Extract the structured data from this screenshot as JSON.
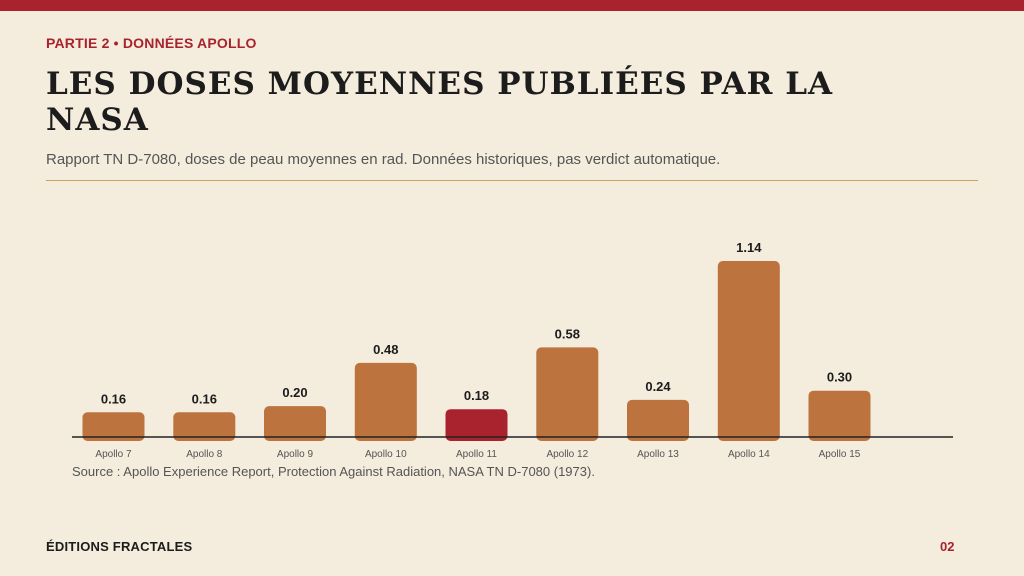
{
  "header": {
    "kicker": "PARTIE 2 • DONNÉES APOLLO",
    "title": "LES DOSES MOYENNES PUBLIÉES PAR LA NASA",
    "subtitle": "Rapport TN D-7080, doses de peau moyennes en rad. Données historiques, pas verdict automatique."
  },
  "chart_data": {
    "type": "bar",
    "categories": [
      "Apollo 7",
      "Apollo 8",
      "Apollo 9",
      "Apollo 10",
      "Apollo 11",
      "Apollo 12",
      "Apollo 13",
      "Apollo 14",
      "Apollo 15"
    ],
    "values": [
      0.16,
      0.16,
      0.2,
      0.48,
      0.18,
      0.58,
      0.24,
      1.14,
      0.3
    ],
    "value_labels": [
      "0.16",
      "0.16",
      "0.20",
      "0.48",
      "0.18",
      "0.58",
      "0.24",
      "1.14",
      "0.30"
    ],
    "ylim": [
      0,
      1.3
    ],
    "grid": false,
    "colors": {
      "default": "#bd733e",
      "highlight": "#a8232e",
      "axis": "#222222"
    },
    "highlight_category": "Apollo 11"
  },
  "source": "Source : Apollo Experience Report, Protection Against Radiation, NASA TN D-7080 (1973).",
  "footer": {
    "brand": "ÉDITIONS FRACTALES",
    "page": "02"
  }
}
